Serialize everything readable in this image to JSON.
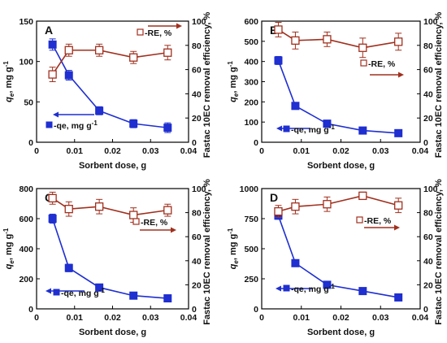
{
  "colors": {
    "qe": "#1f2fd0",
    "re": "#a0301e",
    "axis": "#000000"
  },
  "chart_data": [
    {
      "type": "line",
      "panel": "A",
      "xlabel": "Sorbent dose, g",
      "ylabel": "qe, mg g-1",
      "y2label": "Fastac 10EC removal efficiency, %",
      "xlim": [
        0,
        0.04
      ],
      "xticks": [
        0,
        0.01,
        0.02,
        0.03,
        0.04
      ],
      "xtick_labels": [
        "0",
        "0.01",
        "0.02",
        "0.03",
        "0.04"
      ],
      "ylim": [
        0,
        150
      ],
      "yticks": [
        0,
        50,
        100,
        150
      ],
      "ytick_labels": [
        "0",
        "50",
        "100",
        "150"
      ],
      "y2lim": [
        0,
        100
      ],
      "y2ticks": [
        0,
        20,
        40,
        60,
        80,
        100
      ],
      "y2tick_labels": [
        "0",
        "20",
        "40",
        "60",
        "80",
        "100"
      ],
      "x": [
        0.0042,
        0.0085,
        0.0165,
        0.0255,
        0.0345
      ],
      "series": [
        {
          "name": "qe, mg g-1",
          "axis": "left",
          "values": [
            121,
            83,
            39,
            23,
            18
          ],
          "errors": [
            7,
            6,
            5,
            5,
            6
          ]
        },
        {
          "name": "RE, %",
          "axis": "right",
          "values": [
            56,
            76,
            76,
            70,
            74
          ],
          "errors": [
            6,
            5,
            5,
            5,
            6
          ]
        }
      ],
      "legend": {
        "qe_label": "-qe, mg g",
        "qe_sup": "-1",
        "re_label": "-RE, %"
      }
    },
    {
      "type": "line",
      "panel": "B",
      "xlabel": "Sorbent dose, g",
      "ylabel": "qe, mg g-1",
      "y2label": "Fastac 10EC removal efficiency, %",
      "xlim": [
        0,
        0.04
      ],
      "xticks": [
        0,
        0.01,
        0.02,
        0.03,
        0.04
      ],
      "xtick_labels": [
        "0",
        "0.01",
        "0.02",
        "0.03",
        "0.04"
      ],
      "ylim": [
        0,
        600
      ],
      "yticks": [
        0,
        100,
        200,
        300,
        400,
        500,
        600
      ],
      "ytick_labels": [
        "0",
        "100",
        "200",
        "300",
        "400",
        "500",
        "600"
      ],
      "y2lim": [
        0,
        100
      ],
      "y2ticks": [
        0,
        20,
        40,
        60,
        80,
        100
      ],
      "y2tick_labels": [
        "0",
        "20",
        "40",
        "60",
        "80",
        "100"
      ],
      "x": [
        0.0042,
        0.0085,
        0.0165,
        0.0255,
        0.0345
      ],
      "series": [
        {
          "name": "qe, mg g-1",
          "axis": "left",
          "values": [
            405,
            180,
            92,
            58,
            45
          ],
          "errors": [
            20,
            15,
            12,
            10,
            8
          ]
        },
        {
          "name": "RE, %",
          "axis": "right",
          "values": [
            93,
            84,
            85,
            78,
            83
          ],
          "errors": [
            6,
            7,
            6,
            8,
            7
          ]
        }
      ],
      "legend": {
        "qe_label": "-qe, mg g",
        "qe_sup": "-1",
        "re_label": "-RE, %"
      }
    },
    {
      "type": "line",
      "panel": "C",
      "xlabel": "Sorbent dose, g",
      "ylabel": "qe, mg g-1",
      "y2label": "Fastac 10EC removal efficiency, %",
      "xlim": [
        0,
        0.04
      ],
      "xticks": [
        0,
        0.01,
        0.02,
        0.03,
        0.04
      ],
      "xtick_labels": [
        "0",
        "0.01",
        "0.02",
        "0.03",
        "0.04"
      ],
      "ylim": [
        0,
        800
      ],
      "yticks": [
        0,
        200,
        400,
        600,
        800
      ],
      "ytick_labels": [
        "0",
        "200",
        "400",
        "600",
        "800"
      ],
      "y2lim": [
        0,
        100
      ],
      "y2ticks": [
        0,
        20,
        40,
        60,
        80,
        100
      ],
      "y2tick_labels": [
        "0",
        "20",
        "40",
        "60",
        "80",
        "100"
      ],
      "x": [
        0.0042,
        0.0085,
        0.0165,
        0.0255,
        0.0345
      ],
      "series": [
        {
          "name": "qe, mg g-1",
          "axis": "left",
          "values": [
            600,
            272,
            142,
            88,
            70
          ],
          "errors": [
            30,
            25,
            20,
            18,
            15
          ]
        },
        {
          "name": "RE, %",
          "axis": "right",
          "values": [
            92,
            83,
            85,
            78,
            82
          ],
          "errors": [
            5,
            6,
            6,
            6,
            5
          ]
        }
      ],
      "legend": {
        "qe_label": "-qe, mg g",
        "qe_sup": "-1",
        "re_label": "-RE, %"
      }
    },
    {
      "type": "line",
      "panel": "D",
      "xlabel": "Sorbent dose, g",
      "ylabel": "qe, mg g-1",
      "y2label": "Fastac 10EC removal efficiency, %",
      "xlim": [
        0,
        0.04
      ],
      "xticks": [
        0,
        0.01,
        0.02,
        0.03,
        0.04
      ],
      "xtick_labels": [
        "0",
        "0.01",
        "0.02",
        "0.03",
        "0.04"
      ],
      "ylim": [
        0,
        1000
      ],
      "yticks": [
        0,
        250,
        500,
        750,
        1000
      ],
      "ytick_labels": [
        "0",
        "250",
        "500",
        "750",
        "1000"
      ],
      "y2lim": [
        0,
        100
      ],
      "y2ticks": [
        0,
        20,
        40,
        60,
        80,
        100
      ],
      "y2tick_labels": [
        "0",
        "20",
        "40",
        "60",
        "80",
        "100"
      ],
      "x": [
        0.0042,
        0.0085,
        0.0165,
        0.0255,
        0.0345
      ],
      "series": [
        {
          "name": "qe, mg g-1",
          "axis": "left",
          "values": [
            775,
            380,
            200,
            148,
            95
          ],
          "errors": [
            30,
            20,
            25,
            15,
            10
          ]
        },
        {
          "name": "RE, %",
          "axis": "right",
          "values": [
            81,
            85,
            87,
            94,
            86
          ],
          "errors": [
            5,
            6,
            6,
            3,
            6
          ]
        }
      ],
      "legend": {
        "qe_label": "-qe, mg g",
        "qe_sup": "-1",
        "re_label": "-RE, %"
      }
    }
  ]
}
